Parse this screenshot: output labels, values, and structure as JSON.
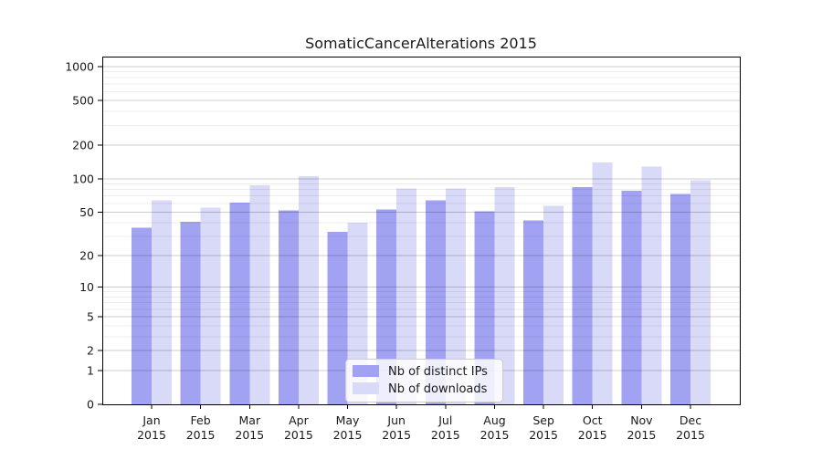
{
  "chart_data": {
    "type": "bar",
    "title": "SomaticCancerAlterations 2015",
    "categories": [
      "Jan",
      "Feb",
      "Mar",
      "Apr",
      "May",
      "Jun",
      "Jul",
      "Aug",
      "Sep",
      "Oct",
      "Nov",
      "Dec"
    ],
    "category_year": "2015",
    "series": [
      {
        "name": "Nb of distinct IPs",
        "color": "#a2a2f2",
        "values": [
          36,
          41,
          61,
          52,
          33,
          53,
          64,
          51,
          42,
          84,
          78,
          73
        ]
      },
      {
        "name": "Nb of downloads",
        "color": "#d9d9f8",
        "values": [
          64,
          55,
          87,
          105,
          40,
          82,
          82,
          84,
          57,
          140,
          128,
          97
        ]
      }
    ],
    "xlabel": "",
    "ylabel": "",
    "yscale": "log1p",
    "ylim": [
      0,
      1000
    ],
    "yticks": [
      0,
      1,
      2,
      5,
      10,
      20,
      50,
      100,
      200,
      500,
      1000
    ],
    "minor_yticks": [
      3,
      4,
      6,
      7,
      8,
      9,
      30,
      40,
      60,
      70,
      80,
      90,
      300,
      400,
      600,
      700,
      800,
      900
    ],
    "grid": true,
    "legend_position": "lower center"
  },
  "colors": {
    "axis": "#000000",
    "tick_text": "#1a1a1a",
    "grid_major": "rgba(0,0,0,0.20)",
    "grid_minor": "rgba(0,0,0,0.07)",
    "legend_border": "#cccccc",
    "legend_background": "rgba(255,255,255,0.82)"
  }
}
